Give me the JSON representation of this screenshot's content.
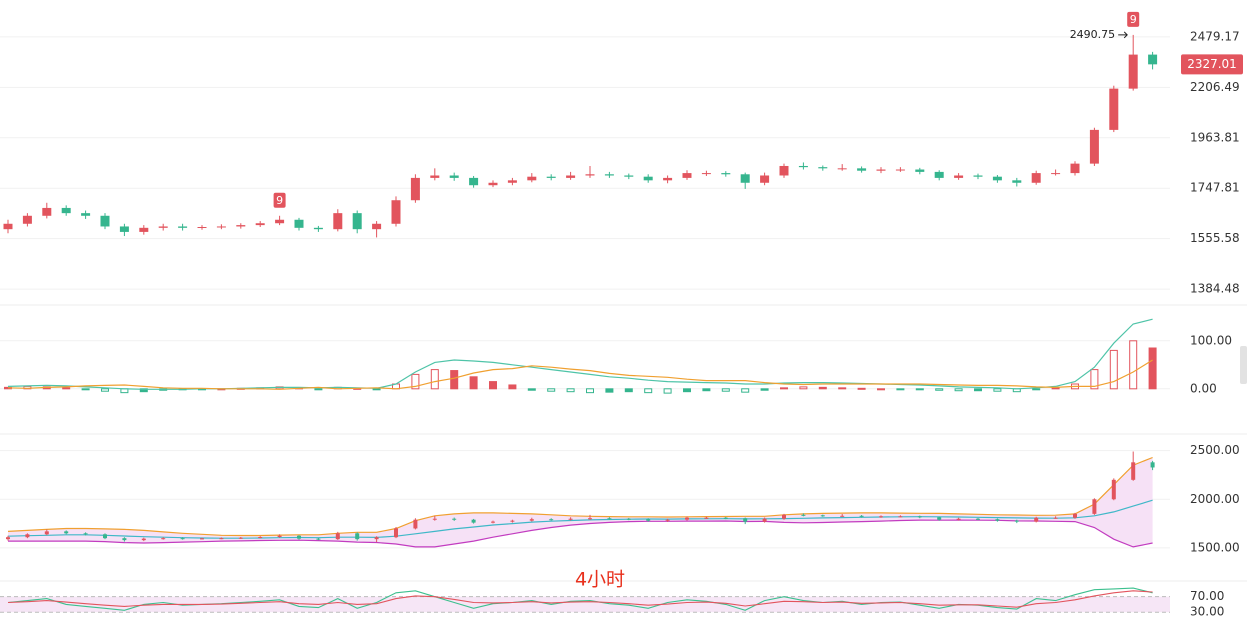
{
  "chart_data": [
    {
      "type": "candlestick",
      "log_scale": true,
      "grid": true,
      "up_color": "#e2545d",
      "down_color": "#35b58e",
      "ylim": [
        1350,
        2700
      ],
      "yticks": [
        2479.17,
        2206.49,
        1963.81,
        1747.81,
        1555.58,
        1384.48
      ],
      "open": [
        1590,
        1610,
        1640,
        1670,
        1650,
        1640,
        1600,
        1580,
        1595,
        1600,
        1595,
        1598,
        1600,
        1605,
        1612,
        1625,
        1595,
        1590,
        1650,
        1590,
        1610,
        1700,
        1790,
        1800,
        1790,
        1760,
        1770,
        1780,
        1795,
        1790,
        1800,
        1805,
        1800,
        1795,
        1780,
        1790,
        1810,
        1810,
        1805,
        1770,
        1800,
        1840,
        1835,
        1830,
        1830,
        1820,
        1825,
        1825,
        1815,
        1790,
        1800,
        1795,
        1780,
        1770,
        1810,
        1810,
        1850,
        2000,
        2200,
        2380
      ],
      "high": [
        1625,
        1650,
        1690,
        1680,
        1660,
        1650,
        1610,
        1605,
        1610,
        1610,
        1605,
        1608,
        1612,
        1620,
        1640,
        1632,
        1602,
        1665,
        1660,
        1620,
        1715,
        1805,
        1830,
        1812,
        1798,
        1780,
        1790,
        1810,
        1805,
        1815,
        1840,
        1815,
        1808,
        1805,
        1800,
        1822,
        1820,
        1818,
        1812,
        1812,
        1850,
        1855,
        1842,
        1848,
        1838,
        1835,
        1835,
        1832,
        1822,
        1810,
        1808,
        1802,
        1790,
        1820,
        1825,
        1860,
        2010,
        2215,
        2490.75,
        2395
      ],
      "low": [
        1575,
        1600,
        1630,
        1640,
        1628,
        1590,
        1565,
        1570,
        1585,
        1585,
        1588,
        1590,
        1592,
        1598,
        1605,
        1585,
        1580,
        1582,
        1575,
        1560,
        1600,
        1690,
        1780,
        1778,
        1750,
        1752,
        1760,
        1772,
        1780,
        1782,
        1790,
        1790,
        1785,
        1770,
        1768,
        1782,
        1798,
        1795,
        1745,
        1760,
        1790,
        1825,
        1820,
        1820,
        1812,
        1810,
        1815,
        1805,
        1780,
        1782,
        1785,
        1770,
        1755,
        1762,
        1800,
        1800,
        1840,
        1990,
        2190,
        2300
      ],
      "close": [
        1610,
        1640,
        1670,
        1650,
        1640,
        1600,
        1580,
        1595,
        1600,
        1595,
        1598,
        1600,
        1605,
        1612,
        1625,
        1595,
        1590,
        1650,
        1590,
        1610,
        1700,
        1790,
        1800,
        1790,
        1760,
        1770,
        1780,
        1795,
        1790,
        1800,
        1805,
        1800,
        1795,
        1780,
        1790,
        1810,
        1810,
        1805,
        1770,
        1800,
        1840,
        1835,
        1830,
        1830,
        1820,
        1825,
        1825,
        1815,
        1790,
        1800,
        1795,
        1780,
        1770,
        1810,
        1810,
        1850,
        2000,
        2200,
        2380,
        2327.01
      ],
      "markers": [
        {
          "at": 14,
          "label": "9"
        },
        {
          "at": 58,
          "label": "9"
        }
      ]
    },
    {
      "type": "macd",
      "grid": true,
      "up_color": "#e2545d",
      "down_color": "#35b58e",
      "ylim": [
        -90,
        160
      ],
      "yticks": [
        {
          "value": 100,
          "label": "100.00"
        },
        {
          "value": 0,
          "label": "0.00"
        }
      ],
      "histogram": [
        3,
        5,
        4,
        2,
        -2,
        -5,
        -8,
        -6,
        -3,
        -2,
        -1,
        0,
        1,
        2,
        4,
        2,
        -1,
        3,
        1,
        -1,
        10,
        30,
        40,
        38,
        25,
        15,
        8,
        -3,
        -5,
        -6,
        -8,
        -7,
        -6,
        -8,
        -9,
        -6,
        -4,
        -5,
        -7,
        -3,
        2,
        4,
        3,
        2,
        1,
        0,
        -1,
        -2,
        -3,
        -4,
        -4,
        -5,
        -6,
        -2,
        2,
        10,
        40,
        80,
        100,
        85
      ],
      "series": [
        {
          "color": "#4fc4a8",
          "values": [
            5,
            6,
            7,
            6,
            4,
            2,
            0,
            -1,
            -1,
            -1,
            0,
            0,
            1,
            2,
            3,
            3,
            2,
            3,
            2,
            1,
            10,
            35,
            55,
            60,
            58,
            55,
            50,
            45,
            40,
            35,
            30,
            25,
            22,
            18,
            15,
            14,
            13,
            12,
            10,
            10,
            12,
            13,
            13,
            12,
            11,
            10,
            9,
            8,
            6,
            4,
            3,
            2,
            0,
            2,
            5,
            15,
            45,
            95,
            135,
            145
          ]
        },
        {
          "color": "#f0a030",
          "values": [
            2,
            1,
            3,
            4,
            6,
            7,
            8,
            5,
            2,
            1,
            1,
            0,
            0,
            0,
            -1,
            1,
            3,
            0,
            1,
            2,
            0,
            5,
            15,
            22,
            33,
            40,
            42,
            48,
            45,
            41,
            38,
            32,
            28,
            26,
            24,
            20,
            17,
            17,
            17,
            13,
            10,
            9,
            10,
            10,
            10,
            10,
            10,
            10,
            9,
            8,
            7,
            7,
            6,
            4,
            3,
            5,
            5,
            15,
            35,
            60
          ]
        }
      ]
    },
    {
      "type": "bollinger",
      "grid": true,
      "band_color": "#f6e1f6",
      "ylim": [
        1170,
        2630
      ],
      "yticks": [
        {
          "value": 2500,
          "label": "2500.00"
        },
        {
          "value": 2000,
          "label": "2000.00"
        },
        {
          "value": 1500,
          "label": "1500.00"
        }
      ],
      "series": [
        {
          "color": "#f0a030",
          "values": [
            1670,
            1680,
            1690,
            1700,
            1700,
            1695,
            1690,
            1680,
            1665,
            1650,
            1640,
            1630,
            1628,
            1628,
            1632,
            1635,
            1635,
            1650,
            1660,
            1660,
            1700,
            1780,
            1830,
            1850,
            1860,
            1860,
            1855,
            1850,
            1840,
            1830,
            1825,
            1822,
            1820,
            1820,
            1818,
            1820,
            1822,
            1823,
            1825,
            1825,
            1840,
            1850,
            1855,
            1858,
            1860,
            1860,
            1858,
            1856,
            1855,
            1850,
            1845,
            1840,
            1838,
            1835,
            1836,
            1850,
            1950,
            2150,
            2350,
            2430
          ]
        },
        {
          "color": "#3fb8c8",
          "values": [
            1620,
            1625,
            1630,
            1635,
            1635,
            1630,
            1622,
            1615,
            1610,
            1605,
            1602,
            1600,
            1600,
            1602,
            1605,
            1607,
            1605,
            1610,
            1610,
            1608,
            1620,
            1645,
            1670,
            1695,
            1715,
            1735,
            1750,
            1765,
            1775,
            1782,
            1788,
            1792,
            1795,
            1797,
            1796,
            1798,
            1799,
            1800,
            1798,
            1799,
            1801,
            1804,
            1808,
            1812,
            1815,
            1818,
            1820,
            1821,
            1820,
            1818,
            1815,
            1812,
            1808,
            1806,
            1805,
            1810,
            1830,
            1870,
            1930,
            1990
          ]
        },
        {
          "color": "#c23cc0",
          "values": [
            1570,
            1570,
            1570,
            1570,
            1570,
            1565,
            1555,
            1550,
            1555,
            1560,
            1564,
            1570,
            1572,
            1576,
            1578,
            1579,
            1575,
            1570,
            1560,
            1556,
            1540,
            1510,
            1510,
            1540,
            1570,
            1610,
            1645,
            1680,
            1710,
            1734,
            1751,
            1762,
            1770,
            1774,
            1774,
            1776,
            1776,
            1777,
            1771,
            1773,
            1762,
            1758,
            1761,
            1766,
            1770,
            1776,
            1782,
            1786,
            1785,
            1786,
            1785,
            1784,
            1778,
            1777,
            1774,
            1770,
            1710,
            1590,
            1510,
            1550
          ]
        }
      ]
    },
    {
      "type": "rsi",
      "grid": true,
      "band_color": "#f6e6f6",
      "annotation": "4小时",
      "annotation_color": "#e8301c",
      "ylim": [
        10,
        100
      ],
      "yticks": [
        {
          "value": 70,
          "label": "70.00"
        },
        {
          "value": 30,
          "label": "30.00"
        }
      ],
      "series": [
        {
          "color": "#3cc08e",
          "values": [
            55,
            60,
            65,
            50,
            45,
            40,
            35,
            50,
            55,
            48,
            50,
            52,
            55,
            58,
            62,
            45,
            42,
            65,
            40,
            55,
            80,
            85,
            70,
            55,
            40,
            52,
            55,
            60,
            50,
            58,
            60,
            52,
            48,
            40,
            55,
            62,
            58,
            50,
            35,
            60,
            70,
            60,
            55,
            58,
            50,
            55,
            56,
            48,
            40,
            50,
            48,
            42,
            38,
            65,
            60,
            75,
            88,
            90,
            92,
            80
          ]
        },
        {
          "color": "#e2545d",
          "values": [
            55,
            57,
            60,
            56,
            52,
            48,
            45,
            48,
            50,
            50,
            50,
            51,
            53,
            55,
            57,
            52,
            50,
            55,
            50,
            52,
            65,
            72,
            70,
            63,
            55,
            54,
            55,
            57,
            54,
            56,
            57,
            55,
            52,
            48,
            51,
            55,
            56,
            53,
            46,
            52,
            58,
            57,
            55,
            56,
            53,
            54,
            55,
            52,
            48,
            49,
            49,
            46,
            43,
            52,
            55,
            62,
            72,
            80,
            85,
            82
          ]
        }
      ]
    }
  ]
}
